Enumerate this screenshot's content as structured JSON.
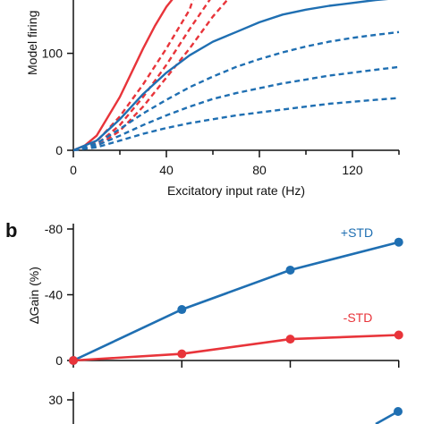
{
  "colors": {
    "std_plus": "#1f6fb2",
    "std_minus": "#e8343a",
    "axis": "#111111"
  },
  "chart_data": [
    {
      "type": "line",
      "panel": "",
      "xlabel": "Excitatory input rate (Hz)",
      "ylabel": "Model firing",
      "xlim": [
        0,
        140
      ],
      "ylim": [
        0,
        155
      ],
      "xticks": [
        0,
        40,
        80,
        120
      ],
      "yticks": [
        0,
        100
      ],
      "series": [
        {
          "style": "solid",
          "color": "std_minus",
          "x": [
            0,
            5,
            10,
            15,
            20,
            25,
            30,
            35,
            40,
            44
          ],
          "y": [
            0,
            5,
            15,
            35,
            55,
            80,
            105,
            128,
            148,
            160
          ]
        },
        {
          "style": "dashed",
          "color": "std_minus",
          "x": [
            0,
            10,
            20,
            30,
            40,
            50,
            52
          ],
          "y": [
            0,
            9,
            35,
            68,
            105,
            145,
            160
          ]
        },
        {
          "style": "dashed",
          "color": "std_minus",
          "x": [
            0,
            10,
            20,
            30,
            40,
            50,
            60
          ],
          "y": [
            0,
            6,
            26,
            55,
            88,
            125,
            160
          ]
        },
        {
          "style": "dashed",
          "color": "std_minus",
          "x": [
            0,
            10,
            20,
            30,
            40,
            50,
            60,
            68
          ],
          "y": [
            0,
            4,
            20,
            45,
            75,
            105,
            138,
            160
          ]
        },
        {
          "style": "solid",
          "color": "std_plus",
          "x": [
            0,
            10,
            20,
            30,
            40,
            50,
            60,
            70,
            80,
            90,
            100,
            110,
            120,
            130,
            140
          ],
          "y": [
            0,
            10,
            32,
            58,
            80,
            98,
            112,
            122,
            132,
            140,
            145,
            149,
            152,
            155,
            157
          ]
        },
        {
          "style": "dashed",
          "color": "std_plus",
          "x": [
            0,
            10,
            20,
            30,
            40,
            50,
            60,
            70,
            80,
            90,
            100,
            110,
            120,
            130,
            140
          ],
          "y": [
            0,
            7,
            22,
            38,
            52,
            65,
            76,
            86,
            94,
            101,
            107,
            112,
            116,
            119,
            122
          ]
        },
        {
          "style": "dashed",
          "color": "std_plus",
          "x": [
            0,
            10,
            20,
            30,
            40,
            50,
            60,
            70,
            80,
            90,
            100,
            110,
            120,
            130,
            140
          ],
          "y": [
            0,
            5,
            15,
            26,
            36,
            45,
            53,
            59,
            64,
            69,
            73,
            77,
            80,
            83,
            86
          ]
        },
        {
          "style": "dashed",
          "color": "std_plus",
          "x": [
            0,
            10,
            20,
            30,
            40,
            50,
            60,
            70,
            80,
            90,
            100,
            110,
            120,
            130,
            140
          ],
          "y": [
            0,
            3,
            10,
            17,
            23,
            28,
            32,
            36,
            39,
            42,
            45,
            48,
            50,
            52,
            54
          ]
        }
      ]
    },
    {
      "type": "line",
      "panel": "b",
      "ylabel": "∆Gain (%)",
      "xlim": [
        0,
        4
      ],
      "ylim": [
        0,
        -80
      ],
      "yticks": [
        0,
        -40,
        -80
      ],
      "ytick_labels": [
        "0",
        "-40",
        "-80"
      ],
      "series": [
        {
          "name": "+STD",
          "color": "std_plus",
          "x": [
            0,
            1,
            2,
            3
          ],
          "y": [
            0,
            -31,
            -55,
            -72
          ]
        },
        {
          "name": "-STD",
          "color": "std_minus",
          "x": [
            0,
            1,
            2,
            3
          ],
          "y": [
            0,
            -4,
            -13,
            -15.5
          ]
        }
      ]
    },
    {
      "type": "line",
      "panel": "",
      "ylim": [
        0,
        30
      ],
      "yticks": [
        30
      ],
      "series": [
        {
          "color": "std_plus",
          "x": [
            3
          ],
          "y": [
            25
          ]
        }
      ]
    }
  ]
}
